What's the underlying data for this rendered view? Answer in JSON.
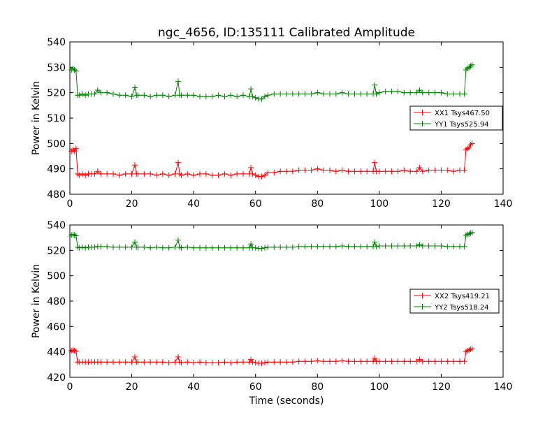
{
  "figure": {
    "title": "ngc_4656, ID:135111 Calibrated Amplitude",
    "xlabel": "Time (seconds)"
  },
  "chart_data": [
    {
      "type": "line",
      "ylabel": "Power in Kelvin",
      "xlabel": "",
      "xlim": [
        0,
        140
      ],
      "ylim": [
        480,
        540
      ],
      "xticks": [
        0,
        20,
        40,
        60,
        80,
        100,
        120,
        140
      ],
      "yticks": [
        480,
        490,
        500,
        510,
        520,
        530,
        540
      ],
      "grid": false,
      "legend_placement": "center-right",
      "series": [
        {
          "name": "XX1 Tsys467.50",
          "color": "#ff0000",
          "marker": "plus",
          "x": [
            0.5,
            1,
            1.5,
            2,
            2.5,
            3,
            4,
            5,
            6,
            7,
            8,
            9,
            10,
            12,
            14,
            16,
            18,
            20,
            21,
            21.5,
            22,
            24,
            26,
            28,
            30,
            32,
            34,
            35,
            35.5,
            36,
            38,
            40,
            42,
            44,
            46,
            48,
            50,
            52,
            54,
            56,
            58,
            58.5,
            59,
            60,
            61,
            62,
            63,
            64,
            66,
            68,
            70,
            72,
            74,
            76,
            78,
            80,
            82,
            84,
            86,
            88,
            90,
            92,
            94,
            96,
            98,
            98.5,
            99,
            100,
            102,
            104,
            106,
            108,
            110,
            112,
            113,
            114,
            116,
            118,
            120,
            122,
            124,
            126,
            127.5,
            128,
            128.5,
            129,
            129.5,
            130
          ],
          "values": [
            497,
            497.5,
            497,
            498,
            488,
            487.5,
            488,
            487.5,
            488,
            488,
            488,
            489,
            488,
            488,
            488,
            487.5,
            488,
            488,
            491.5,
            488,
            488,
            488,
            488,
            487.5,
            488,
            487.5,
            488,
            492.5,
            488,
            487.5,
            488,
            487.5,
            488,
            488,
            487.5,
            487.5,
            488,
            487.5,
            488,
            488,
            488,
            490.5,
            488,
            487.5,
            487,
            487,
            487.5,
            488.5,
            488.5,
            489,
            489,
            489,
            489.5,
            489.5,
            489.5,
            490,
            489.5,
            489.5,
            489,
            489.5,
            489,
            489,
            489,
            489,
            489,
            492.5,
            489,
            489,
            489,
            489,
            489,
            489.5,
            489,
            489,
            490.5,
            489,
            489.5,
            489.5,
            489.5,
            489.5,
            489,
            489.5,
            489.5,
            497.5,
            498,
            498.5,
            499.5,
            500
          ]
        },
        {
          "name": "YY1 Tsys525.94",
          "color": "#008000",
          "marker": "plus",
          "x": [
            0.5,
            1,
            1.5,
            2,
            2.5,
            3,
            4,
            5,
            6,
            7,
            8,
            9,
            10,
            12,
            14,
            16,
            18,
            20,
            21,
            21.5,
            22,
            24,
            26,
            28,
            30,
            32,
            34,
            35,
            35.5,
            36,
            38,
            40,
            42,
            44,
            46,
            48,
            50,
            52,
            54,
            56,
            58,
            58.5,
            59,
            60,
            61,
            62,
            63,
            64,
            66,
            68,
            70,
            72,
            74,
            76,
            78,
            80,
            82,
            84,
            86,
            88,
            90,
            92,
            94,
            96,
            98,
            98.5,
            99,
            100,
            102,
            104,
            106,
            108,
            110,
            112,
            113,
            114,
            116,
            118,
            120,
            122,
            124,
            126,
            127.5,
            128,
            128.5,
            129,
            129.5,
            130
          ],
          "values": [
            529,
            529.5,
            529,
            528.5,
            519,
            519,
            519.5,
            519,
            519.5,
            519.5,
            519.5,
            521,
            520,
            520,
            519.5,
            519,
            519,
            518.5,
            522,
            519,
            519,
            519,
            518.5,
            519,
            519,
            518.5,
            519,
            524.5,
            519,
            519,
            519,
            519,
            518.5,
            518.5,
            518.5,
            519,
            518.5,
            519,
            518.5,
            519,
            518.5,
            521.5,
            518.5,
            518,
            517.5,
            517.5,
            518.5,
            519,
            519.5,
            519.5,
            519.5,
            519.5,
            519.5,
            519.5,
            519.5,
            520,
            519.5,
            519.5,
            519.5,
            520,
            519.5,
            519.5,
            519.5,
            519.5,
            519.5,
            523,
            519.5,
            520,
            520.5,
            520.5,
            520.5,
            520,
            520,
            520,
            521,
            520,
            520,
            520,
            520,
            519.5,
            519.5,
            519.5,
            519.5,
            529,
            529.5,
            530,
            530.5,
            531
          ]
        }
      ]
    },
    {
      "type": "line",
      "ylabel": "Power in Kelvin",
      "xlabel": "Time (seconds)",
      "xlim": [
        0,
        140
      ],
      "ylim": [
        420,
        540
      ],
      "xticks": [
        0,
        20,
        40,
        60,
        80,
        100,
        120,
        140
      ],
      "yticks": [
        420,
        440,
        460,
        480,
        500,
        520,
        540
      ],
      "grid": false,
      "legend_placement": "center-right",
      "series": [
        {
          "name": "XX2 Tsys419.21",
          "color": "#ff0000",
          "marker": "plus",
          "x": [
            0.5,
            1,
            1.5,
            2,
            2.5,
            3,
            4,
            5,
            6,
            7,
            8,
            9,
            10,
            12,
            14,
            16,
            18,
            20,
            21,
            21.5,
            22,
            24,
            26,
            28,
            30,
            32,
            34,
            35,
            35.5,
            36,
            38,
            40,
            42,
            44,
            46,
            48,
            50,
            52,
            54,
            56,
            58,
            58.5,
            59,
            60,
            61,
            62,
            63,
            64,
            66,
            68,
            70,
            72,
            74,
            76,
            78,
            80,
            82,
            84,
            86,
            88,
            90,
            92,
            94,
            96,
            98,
            98.5,
            99,
            100,
            102,
            104,
            106,
            108,
            110,
            112,
            113,
            114,
            116,
            118,
            120,
            122,
            124,
            126,
            127.5,
            128,
            128.5,
            129,
            129.5,
            130
          ],
          "values": [
            441,
            441.5,
            441,
            440.5,
            432,
            432,
            432,
            432,
            432,
            432,
            432,
            432,
            432,
            432,
            432,
            432,
            432,
            432,
            436,
            432,
            432,
            432,
            432,
            432,
            432,
            431.5,
            432,
            436,
            432,
            431.5,
            432,
            431.5,
            432,
            431.5,
            431.5,
            431.5,
            432,
            431.5,
            432,
            432,
            432,
            434,
            432,
            431.5,
            431,
            431,
            431.5,
            432,
            432,
            432,
            432,
            432,
            432.5,
            432.5,
            432.5,
            433,
            432.5,
            432.5,
            432.5,
            433,
            432.5,
            432.5,
            432.5,
            432.5,
            432.5,
            435,
            432.5,
            432.5,
            432.5,
            432.5,
            432.5,
            432.5,
            432.5,
            432.5,
            434,
            432.5,
            432.5,
            432.5,
            432.5,
            432.5,
            432.5,
            432.5,
            432.5,
            440,
            441,
            441.5,
            442,
            442.5
          ]
        },
        {
          "name": "YY2 Tsys518.24",
          "color": "#008000",
          "marker": "plus",
          "x": [
            0.5,
            1,
            1.5,
            2,
            2.5,
            3,
            4,
            5,
            6,
            7,
            8,
            9,
            10,
            12,
            14,
            16,
            18,
            20,
            21,
            21.5,
            22,
            24,
            26,
            28,
            30,
            32,
            34,
            35,
            35.5,
            36,
            38,
            40,
            42,
            44,
            46,
            48,
            50,
            52,
            54,
            56,
            58,
            58.5,
            59,
            60,
            61,
            62,
            63,
            64,
            66,
            68,
            70,
            72,
            74,
            76,
            78,
            80,
            82,
            84,
            86,
            88,
            90,
            92,
            94,
            96,
            98,
            98.5,
            99,
            100,
            102,
            104,
            106,
            108,
            110,
            112,
            113,
            114,
            116,
            118,
            120,
            122,
            124,
            126,
            127.5,
            128,
            128.5,
            129,
            129.5,
            130
          ],
          "values": [
            532,
            532.5,
            532,
            531.5,
            522.5,
            522,
            522.5,
            522,
            522.5,
            522.5,
            522.5,
            523,
            523,
            523,
            522.5,
            522.5,
            522.5,
            522.5,
            526.5,
            522.5,
            522.5,
            522.5,
            522,
            522.5,
            522,
            522,
            522.5,
            528,
            522.5,
            522,
            522.5,
            522,
            522,
            522,
            522,
            522,
            522,
            522,
            522,
            522,
            522,
            525,
            522,
            522,
            521.5,
            521.5,
            522,
            522.5,
            522.5,
            522.5,
            522.5,
            522.5,
            523,
            523,
            523,
            523,
            523,
            523,
            523,
            523.5,
            523,
            523,
            523,
            523,
            523,
            526.5,
            523,
            523.5,
            523.5,
            523.5,
            523.5,
            523.5,
            523.5,
            523.5,
            524.5,
            523.5,
            523.5,
            523.5,
            523.5,
            523,
            523,
            523,
            523,
            532,
            532.5,
            533,
            533.5,
            534
          ]
        }
      ]
    }
  ]
}
